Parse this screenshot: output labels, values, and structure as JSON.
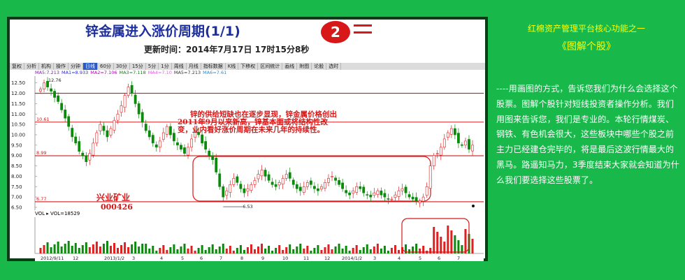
{
  "chart_panel": {
    "title": "锌金属进入涨价周期(1/1)",
    "badge": "2",
    "update_time": "更新时间：2014年7月17日 17时15分8秒",
    "toolbar": [
      "复权",
      "分析",
      "机构",
      "操作",
      "分钟",
      "日线",
      "60分",
      "30分",
      "15分",
      "5分",
      "1分",
      "周线",
      "月线",
      "指标数据",
      "K线",
      "下移权",
      "区间统计",
      "画线",
      "附图",
      "论股",
      "选时"
    ],
    "active_tool": "日线",
    "ma_row": [
      {
        "text": "MA5:7.213",
        "color": "#7a1fa2"
      },
      {
        "text": "MA1=8.933",
        "color": "#2a2ad0"
      },
      {
        "text": "MA2=7.106",
        "color": "#b000b0"
      },
      {
        "text": "MA3=7.118",
        "color": "#0a8a0a"
      },
      {
        "text": "MA4=7.10",
        "color": "#e060e0"
      },
      {
        "text": "MA5=7.213",
        "color": "#333333"
      },
      {
        "text": "MA6=7.61",
        "color": "#2a8ad0"
      }
    ],
    "annotation": [
      "锌的供给短缺也在逐步显现，锌金属价格创出",
      "2011年9月以来新高，锌基本面或将结构性改",
      "变，业内看好涨价周期在未来几年的持续性。"
    ],
    "stock_name": "兴业矿业",
    "stock_code": "000426",
    "vol_label": "VOL ▸ VOL=18529",
    "y_ticks": [
      "12.50",
      "12.00",
      "11.50",
      "11.00",
      "10.50",
      "10.00",
      "9.50",
      "9.00",
      "8.50",
      "8.00",
      "7.50",
      "7.00",
      "6.50"
    ],
    "level_labels": [
      "10.61",
      "8.99",
      "6.77"
    ],
    "low_label": "6.53",
    "high_label": "12.76",
    "x_labels": [
      "2012/9/11",
      "12",
      "2013/1/2",
      "3",
      "4",
      "5",
      "6",
      "7",
      "8",
      "9",
      "10",
      "11",
      "12",
      "2014/1/2",
      "3",
      "4",
      "5",
      "6",
      "7"
    ],
    "colors": {
      "up": "#e02020",
      "down": "#0a8a0a",
      "level": "#d81818",
      "frame": "#0b3b17"
    }
  },
  "chart_data": {
    "type": "candlestick",
    "ylim": [
      6.5,
      12.76
    ],
    "levels": [
      10.61,
      8.99,
      6.77
    ],
    "high": 12.76,
    "low": 6.53,
    "close_series": [
      12.2,
      12.5,
      12.3,
      12.1,
      11.8,
      11.6,
      11.2,
      10.8,
      10.4,
      9.9,
      9.6,
      9.2,
      9.0,
      8.7,
      9.1,
      9.6,
      10.1,
      10.5,
      10.2,
      9.9,
      10.3,
      10.7,
      11.0,
      11.4,
      11.9,
      12.3,
      12.0,
      11.5,
      11.0,
      10.6,
      10.2,
      9.9,
      9.6,
      9.4,
      9.7,
      10.1,
      10.4,
      10.0,
      9.7,
      9.5,
      9.3,
      9.1,
      9.4,
      9.8,
      10.2,
      10.0,
      9.6,
      9.3,
      9.0,
      8.8,
      8.2,
      7.5,
      7.0,
      7.3,
      7.6,
      7.9,
      7.7,
      7.4,
      7.2,
      7.4,
      7.6,
      7.8,
      8.1,
      8.3,
      8.0,
      7.8,
      7.6,
      7.5,
      7.7,
      7.9,
      8.1,
      7.9,
      7.6,
      7.4,
      7.3,
      7.5,
      7.7,
      7.6,
      7.4,
      7.3,
      7.5,
      7.7,
      7.9,
      8.0,
      7.8,
      7.6,
      7.4,
      7.2,
      7.1,
      7.3,
      7.5,
      7.4,
      7.2,
      7.1,
      7.0,
      7.2,
      7.3,
      7.1,
      7.0,
      6.9,
      6.9,
      7.1,
      7.3,
      7.4,
      7.2,
      7.0,
      6.9,
      6.8,
      6.8,
      7.0,
      7.5,
      8.5,
      9.0,
      9.1,
      9.4,
      9.8,
      10.1,
      10.3,
      10.0,
      9.6,
      9.5,
      9.7,
      9.3,
      9.5
    ]
  },
  "right_panel": {
    "title": "红棉资产管理平台核心功能之一",
    "subtitle": "《图解个股》",
    "body": "----用画图的方式，告诉您我们为什么会选择这个股票。图解个股针对短线投资者操作分析。我们用图来告诉您，我们是专业的。本轮行情煤炭、钢铁、有色机会很大，这些板块中哪些个股之前主力已经建仓完毕的，将是最后这波行情最大的黑马。路遥知马力，3季度结束大家就会知道为什么我们要选择这些股票了。"
  }
}
